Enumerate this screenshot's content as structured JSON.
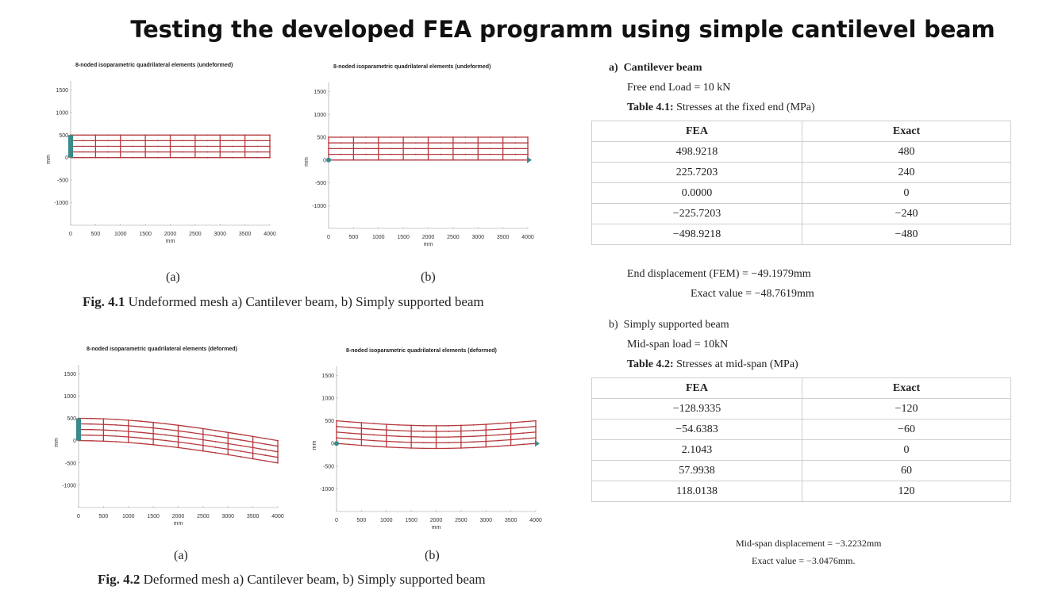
{
  "title": "Testing the developed FEA programm using simple cantilevel beam",
  "plots": [
    {
      "title": "8-noded isoparametric quadrilateral elements (undeformed)",
      "xlabel": "mm",
      "ylabel": "mm",
      "xticks": [
        "0",
        "500",
        "1000",
        "1500",
        "2000",
        "2500",
        "3000",
        "3500",
        "4000"
      ],
      "yticks": [
        "1500",
        "1000",
        "500",
        "0",
        "-500",
        "-1000"
      ],
      "support": "fixed",
      "deformation": "none"
    },
    {
      "title": "8-noded isoparametric quadrilateral elements (undeformed)",
      "xlabel": "mm",
      "ylabel": "mm",
      "xticks": [
        "0",
        "500",
        "1000",
        "1500",
        "2000",
        "2500",
        "3000",
        "3500",
        "4000"
      ],
      "yticks": [
        "1500",
        "1000",
        "500",
        "0",
        "-500",
        "-1000"
      ],
      "support": "simple",
      "deformation": "none"
    },
    {
      "title": "8-noded isoparametric quadrilateral elements (deformed)",
      "xlabel": "mm",
      "ylabel": "mm",
      "xticks": [
        "0",
        "500",
        "1000",
        "1500",
        "2000",
        "2500",
        "3000",
        "3500",
        "4000"
      ],
      "yticks": [
        "1500",
        "1000",
        "500",
        "0",
        "-500",
        "-1000"
      ],
      "support": "fixed",
      "deformation": "cantilever"
    },
    {
      "title": "8-noded isoparametric quadrilateral elements (deformed)",
      "xlabel": "mm",
      "ylabel": "mm",
      "xticks": [
        "0",
        "500",
        "1000",
        "1500",
        "2000",
        "2500",
        "3000",
        "3500",
        "4000"
      ],
      "yticks": [
        "1500",
        "1000",
        "500",
        "0",
        "-500",
        "-1000"
      ],
      "support": "simple",
      "deformation": "midspan"
    }
  ],
  "colors": {
    "mesh": "#b5383c",
    "support": "#3a8a8a"
  },
  "fig1": {
    "sub_a": "(a)",
    "sub_b": "(b)",
    "label": "Fig. 4.1",
    "text": " Undeformed mesh a) Cantilever beam, b) Simply supported beam"
  },
  "fig2": {
    "sub_a": "(a)",
    "sub_b": "(b)",
    "label": "Fig. 4.2",
    "text": " Deformed mesh a) Cantilever beam, b) Simply supported beam"
  },
  "sectionA": {
    "heading_prefix": "a)",
    "heading": "Cantilever beam",
    "load": "Free end Load = 10 kN",
    "table_label": "Table 4.1:",
    "table_caption": " Stresses at the fixed end (MPa)",
    "columns": [
      "FEA",
      "Exact"
    ],
    "rows": [
      [
        "498.9218",
        "480"
      ],
      [
        "225.7203",
        "240"
      ],
      [
        "0.0000",
        "0"
      ],
      [
        "−225.7203",
        "−240"
      ],
      [
        "−498.9218",
        "−480"
      ]
    ],
    "disp_fem": "End displacement (FEM) = −49.1979mm",
    "disp_exact": "Exact value = −48.7619mm"
  },
  "sectionB": {
    "heading_prefix": "b)",
    "heading": "Simply supported beam",
    "load": "Mid-span load = 10kN",
    "table_label": "Table 4.2:",
    "table_caption": " Stresses at mid-span (MPa)",
    "columns": [
      "FEA",
      "Exact"
    ],
    "rows": [
      [
        "−128.9335",
        "−120"
      ],
      [
        "−54.6383",
        "−60"
      ],
      [
        "2.1043",
        "0"
      ],
      [
        "57.9938",
        "60"
      ],
      [
        "118.0138",
        "120"
      ]
    ],
    "disp_fem": "Mid-span displacement = −3.2232mm",
    "disp_exact": "Exact value = −3.0476mm."
  }
}
